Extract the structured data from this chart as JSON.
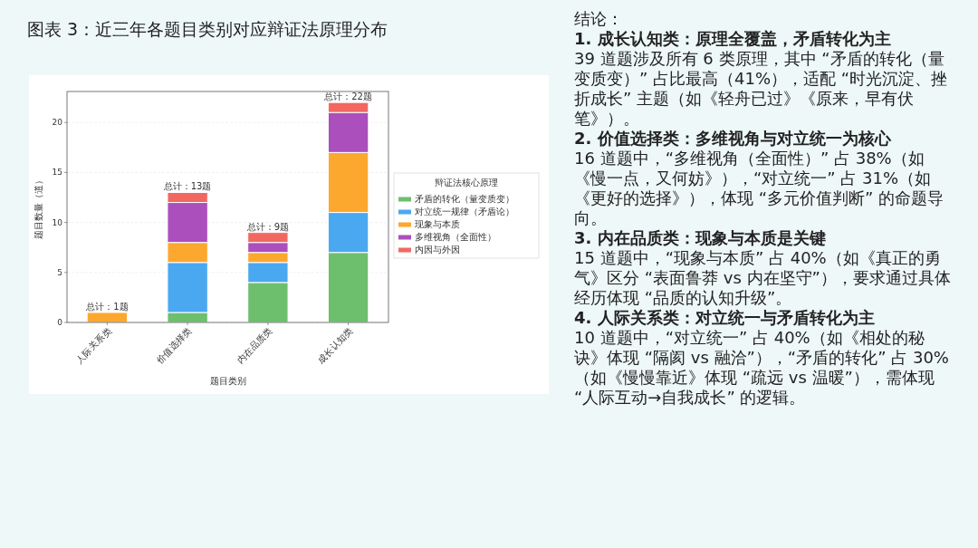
{
  "chart_data": {
    "type": "bar",
    "title": "图表 3：近三年各题目类别对应辩证法原理分布",
    "xlabel": "题目类别",
    "ylabel": "题目数量（道）",
    "legend_title": "辩证法核心原理",
    "stacked": true,
    "categories": [
      "人际关系类",
      "价值选择类",
      "内在品质类",
      "成长认知类"
    ],
    "series": [
      {
        "name": "矛盾的转化（量变质变）",
        "color": "#6dbf6d",
        "values": [
          0,
          1,
          4,
          7
        ]
      },
      {
        "name": "对立统一规律（矛盾论）",
        "color": "#4aa8f0",
        "values": [
          0,
          5,
          2,
          4
        ]
      },
      {
        "name": "现象与本质",
        "color": "#fca82e",
        "values": [
          1,
          2,
          1,
          6
        ]
      },
      {
        "name": "多维视角（全面性）",
        "color": "#ab4fbd",
        "values": [
          0,
          4,
          1,
          4
        ]
      },
      {
        "name": "内因与外因",
        "color": "#f26860",
        "values": [
          0,
          1,
          1,
          1
        ]
      }
    ],
    "totals": [
      "总计：1题",
      "总计：13题",
      "总计：9题",
      "总计：22题"
    ],
    "ylim": [
      0,
      23.1
    ],
    "yticks": [
      0,
      5,
      10,
      15,
      20
    ],
    "grid": "y",
    "legend": "right",
    "annotations": [
      "结论：",
      "1. 成长认知类：原理全覆盖，矛盾转化为主",
      "39 道题涉及所有 6 类原理，其中 “矛盾的转化（量变质变）” 占比最高（41%），适配 “时光沉淀、挫折成长” 主题（如《轻舟已过》《原来，早有伏笔》）。",
      "2. 价值选择类：多维视角与对立统一为核心",
      "16 道题中，“多维视角（全面性）” 占 38%（如《慢一点，又何妨》），“对立统一” 占 31%（如《更好的选择》），体现 “多元价值判断” 的命题导向。",
      "3. 内在品质类：现象与本质是关键",
      "15 道题中，“现象与本质” 占 40%（如《真正的勇气》区分 “表面鲁莽 vs 内在坚守”），要求通过具体经历体现 “品质的认知升级”。",
      "4. 人际关系类：对立统一与矛盾转化为主",
      "10 道题中，“对立统一” 占 40%（如《相处的秘诀》体现 “隔阂 vs 融洽”），“矛盾的转化” 占 30%（如《慢慢靠近》体现 “疏远 vs 温暖”），需体现 “人际互动→自我成长” 的逻辑。"
    ]
  }
}
